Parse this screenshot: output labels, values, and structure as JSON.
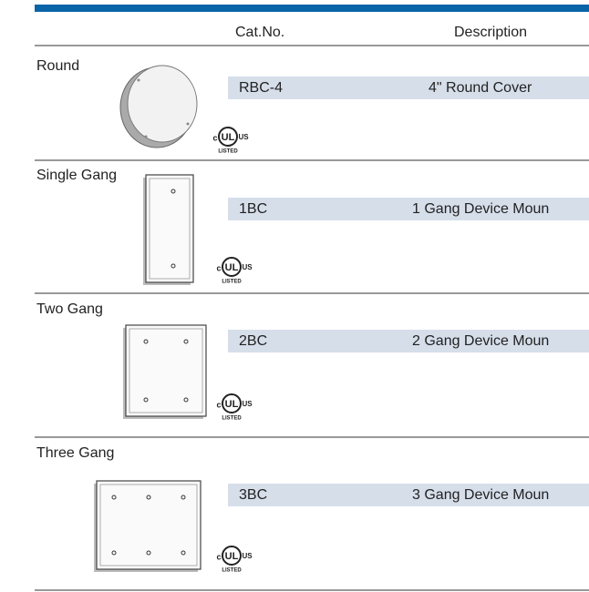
{
  "header": {
    "cat_no": "Cat.No.",
    "description": "Description"
  },
  "ul_mark": {
    "c": "c",
    "ul": "UL",
    "us": "US",
    "listed": "LISTED"
  },
  "rows": [
    {
      "label": "Round",
      "cat_no": "RBC-4",
      "description": "4\"  Round Cover"
    },
    {
      "label": "Single Gang",
      "cat_no": "1BC",
      "description": "1 Gang Device Moun"
    },
    {
      "label": "Two Gang",
      "cat_no": "2BC",
      "description": "2 Gang Device Moun"
    },
    {
      "label": "Three Gang",
      "cat_no": "3BC",
      "description": "3 Gang Device Moun"
    }
  ]
}
